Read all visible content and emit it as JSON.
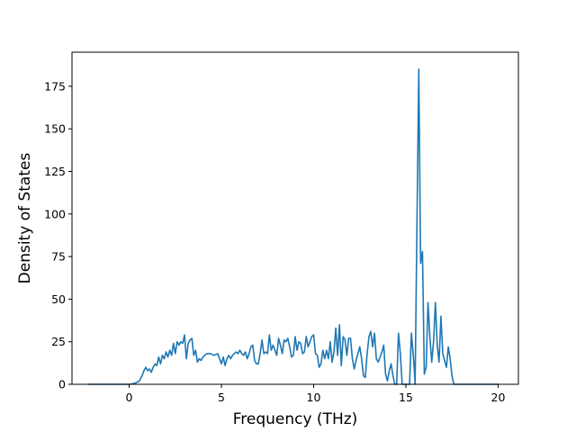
{
  "chart_data": {
    "type": "line",
    "title": "",
    "xlabel": "Frequency (THz)",
    "ylabel": "Density of States",
    "xlim": [
      -3.1,
      21.1
    ],
    "ylim": [
      0,
      195
    ],
    "xticks": [
      0,
      5,
      10,
      15,
      20
    ],
    "yticks": [
      0,
      25,
      50,
      75,
      100,
      125,
      150,
      175
    ],
    "grid": false,
    "legend": "none",
    "series": [
      {
        "color": "#1f77b4",
        "points": [
          [
            -2.2,
            0
          ],
          [
            -1.5,
            0
          ],
          [
            -1.0,
            0
          ],
          [
            -0.5,
            0
          ],
          [
            0.0,
            0
          ],
          [
            0.2,
            0.3
          ],
          [
            0.4,
            1
          ],
          [
            0.55,
            2
          ],
          [
            0.7,
            5
          ],
          [
            0.8,
            8
          ],
          [
            0.9,
            10
          ],
          [
            1.0,
            8
          ],
          [
            1.1,
            9
          ],
          [
            1.2,
            7
          ],
          [
            1.3,
            10
          ],
          [
            1.4,
            12
          ],
          [
            1.5,
            11
          ],
          [
            1.6,
            16
          ],
          [
            1.7,
            12
          ],
          [
            1.8,
            17
          ],
          [
            1.9,
            15
          ],
          [
            2.0,
            19
          ],
          [
            2.1,
            16
          ],
          [
            2.2,
            20
          ],
          [
            2.3,
            17
          ],
          [
            2.4,
            24
          ],
          [
            2.5,
            18
          ],
          [
            2.6,
            25
          ],
          [
            2.7,
            23
          ],
          [
            2.8,
            25
          ],
          [
            2.9,
            24
          ],
          [
            3.0,
            29
          ],
          [
            3.1,
            15
          ],
          [
            3.2,
            24
          ],
          [
            3.3,
            26
          ],
          [
            3.4,
            27
          ],
          [
            3.5,
            17
          ],
          [
            3.6,
            20
          ],
          [
            3.7,
            13
          ],
          [
            3.8,
            15
          ],
          [
            3.9,
            14
          ],
          [
            4.0,
            16
          ],
          [
            4.2,
            18
          ],
          [
            4.4,
            18
          ],
          [
            4.6,
            17
          ],
          [
            4.8,
            18
          ],
          [
            5.0,
            12
          ],
          [
            5.1,
            16
          ],
          [
            5.2,
            11
          ],
          [
            5.3,
            15
          ],
          [
            5.4,
            17
          ],
          [
            5.5,
            15
          ],
          [
            5.6,
            17
          ],
          [
            5.8,
            19
          ],
          [
            5.9,
            18
          ],
          [
            6.0,
            20
          ],
          [
            6.1,
            18
          ],
          [
            6.2,
            17
          ],
          [
            6.3,
            19
          ],
          [
            6.4,
            15
          ],
          [
            6.5,
            18
          ],
          [
            6.6,
            22
          ],
          [
            6.7,
            23
          ],
          [
            6.8,
            14
          ],
          [
            6.9,
            12
          ],
          [
            7.0,
            12
          ],
          [
            7.1,
            18
          ],
          [
            7.2,
            26
          ],
          [
            7.3,
            18
          ],
          [
            7.4,
            19
          ],
          [
            7.5,
            18
          ],
          [
            7.6,
            29
          ],
          [
            7.7,
            20
          ],
          [
            7.8,
            23
          ],
          [
            7.9,
            20
          ],
          [
            8.0,
            17
          ],
          [
            8.1,
            27
          ],
          [
            8.2,
            23
          ],
          [
            8.3,
            18
          ],
          [
            8.4,
            26
          ],
          [
            8.5,
            25
          ],
          [
            8.6,
            27
          ],
          [
            8.7,
            22
          ],
          [
            8.8,
            16
          ],
          [
            8.9,
            17
          ],
          [
            9.0,
            28
          ],
          [
            9.1,
            20
          ],
          [
            9.2,
            25
          ],
          [
            9.3,
            24
          ],
          [
            9.4,
            18
          ],
          [
            9.5,
            19
          ],
          [
            9.6,
            28
          ],
          [
            9.7,
            22
          ],
          [
            9.8,
            25
          ],
          [
            9.9,
            28
          ],
          [
            10.0,
            29
          ],
          [
            10.1,
            18
          ],
          [
            10.2,
            17
          ],
          [
            10.3,
            10
          ],
          [
            10.4,
            12
          ],
          [
            10.5,
            20
          ],
          [
            10.6,
            15
          ],
          [
            10.7,
            20
          ],
          [
            10.8,
            15
          ],
          [
            10.9,
            25
          ],
          [
            11.0,
            13
          ],
          [
            11.1,
            19
          ],
          [
            11.2,
            33
          ],
          [
            11.3,
            17
          ],
          [
            11.4,
            35
          ],
          [
            11.5,
            11
          ],
          [
            11.6,
            28
          ],
          [
            11.7,
            26
          ],
          [
            11.8,
            17
          ],
          [
            11.9,
            27
          ],
          [
            12.0,
            27
          ],
          [
            12.1,
            15
          ],
          [
            12.2,
            9
          ],
          [
            12.3,
            14
          ],
          [
            12.4,
            18
          ],
          [
            12.5,
            22
          ],
          [
            12.6,
            15
          ],
          [
            12.7,
            5
          ],
          [
            12.8,
            4
          ],
          [
            12.9,
            18
          ],
          [
            13.0,
            28
          ],
          [
            13.1,
            31
          ],
          [
            13.2,
            22
          ],
          [
            13.3,
            30
          ],
          [
            13.4,
            15
          ],
          [
            13.5,
            13
          ],
          [
            13.6,
            16
          ],
          [
            13.7,
            19
          ],
          [
            13.8,
            23
          ],
          [
            13.9,
            6
          ],
          [
            14.0,
            2
          ],
          [
            14.1,
            8
          ],
          [
            14.2,
            12
          ],
          [
            14.3,
            5
          ],
          [
            14.4,
            0
          ],
          [
            14.5,
            0
          ],
          [
            14.6,
            30
          ],
          [
            14.7,
            18
          ],
          [
            14.8,
            0
          ],
          [
            14.9,
            0
          ],
          [
            15.0,
            0
          ],
          [
            15.2,
            0
          ],
          [
            15.3,
            30
          ],
          [
            15.45,
            10
          ],
          [
            15.5,
            0
          ],
          [
            15.7,
            185
          ],
          [
            15.8,
            71
          ],
          [
            15.9,
            78
          ],
          [
            16.0,
            6
          ],
          [
            16.1,
            10
          ],
          [
            16.2,
            48
          ],
          [
            16.3,
            28
          ],
          [
            16.4,
            13
          ],
          [
            16.5,
            25
          ],
          [
            16.6,
            48
          ],
          [
            16.7,
            23
          ],
          [
            16.8,
            13
          ],
          [
            16.9,
            40
          ],
          [
            17.0,
            18
          ],
          [
            17.1,
            14
          ],
          [
            17.2,
            10
          ],
          [
            17.3,
            22
          ],
          [
            17.4,
            15
          ],
          [
            17.5,
            5
          ],
          [
            17.6,
            0
          ],
          [
            17.8,
            0
          ],
          [
            18.0,
            0
          ],
          [
            19.0,
            0
          ],
          [
            20.0,
            0
          ]
        ]
      }
    ]
  }
}
